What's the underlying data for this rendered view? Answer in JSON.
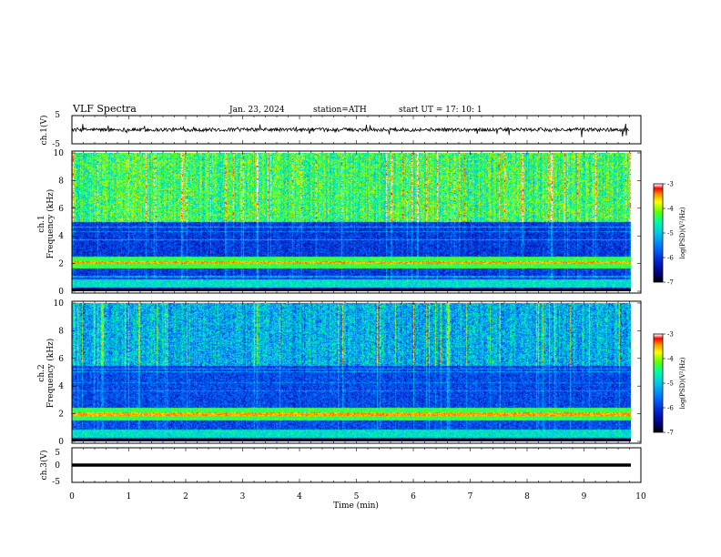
{
  "header": {
    "title": "VLF  Spectra",
    "date": "Jan. 23, 2024",
    "station": "station=ATH",
    "start": "start  UT  =    17: 10: 1"
  },
  "chart_data": [
    {
      "type": "line",
      "name": "ch1-waveform",
      "ylabel": "ch.1(V)",
      "ylim": [
        -5,
        5
      ],
      "yticks": [
        "5",
        "-5"
      ],
      "xlim": [
        0,
        10
      ],
      "data_extent_min": [
        0,
        9.8
      ]
    },
    {
      "type": "heatmap",
      "name": "ch1-spectrogram",
      "ylabel": "ch.1\nFrequency  (kHz)",
      "ylabel_lines": [
        "ch.1",
        "Frequency  (kHz)"
      ],
      "ylim": [
        0,
        10
      ],
      "yticks": [
        "0",
        "2",
        "4",
        "6",
        "8",
        "10"
      ],
      "xlim": [
        0,
        10
      ],
      "colorbar": {
        "label": "log(PSD)(V²/Hz)",
        "ticks": [
          "-3",
          "-4",
          "-5",
          "-6",
          "-7"
        ],
        "range": [
          -7,
          -3
        ]
      },
      "spectral_features": {
        "noise_floor_below_kHz": 5,
        "broadband_spherics_above_kHz": 5,
        "tonal_band_kHz": 2.1
      }
    },
    {
      "type": "heatmap",
      "name": "ch2-spectrogram",
      "ylabel_lines": [
        "ch.2",
        "Frequency  (kHz)"
      ],
      "ylim": [
        0,
        10
      ],
      "yticks": [
        "0",
        "2",
        "4",
        "6",
        "8",
        "10"
      ],
      "xlim": [
        0,
        10
      ],
      "colorbar": {
        "label": "log(PSD)(V²/Hz)",
        "ticks": [
          "-3",
          "-4",
          "-5",
          "-6",
          "-7"
        ],
        "range": [
          -7,
          -3
        ]
      },
      "spectral_features": {
        "tonal_band_kHz": 2.0
      }
    },
    {
      "type": "line",
      "name": "ch3-waveform",
      "ylabel": "ch.3(V)",
      "ylim": [
        -5,
        5
      ],
      "yticks": [
        "5",
        "0",
        "-5"
      ],
      "xlim": [
        0,
        10
      ],
      "series": [
        {
          "values_constant": -1
        }
      ]
    }
  ],
  "xaxis": {
    "label": "Time  (min)",
    "ticks": [
      "0",
      "1",
      "2",
      "3",
      "4",
      "5",
      "6",
      "7",
      "8",
      "9",
      "10"
    ]
  },
  "colors": {
    "colormap": [
      "#000000",
      "#0000aa",
      "#0044ff",
      "#00aaff",
      "#00ffaa",
      "#44ff00",
      "#ffff00",
      "#ff8800",
      "#ff0000",
      "#ffffff"
    ]
  }
}
